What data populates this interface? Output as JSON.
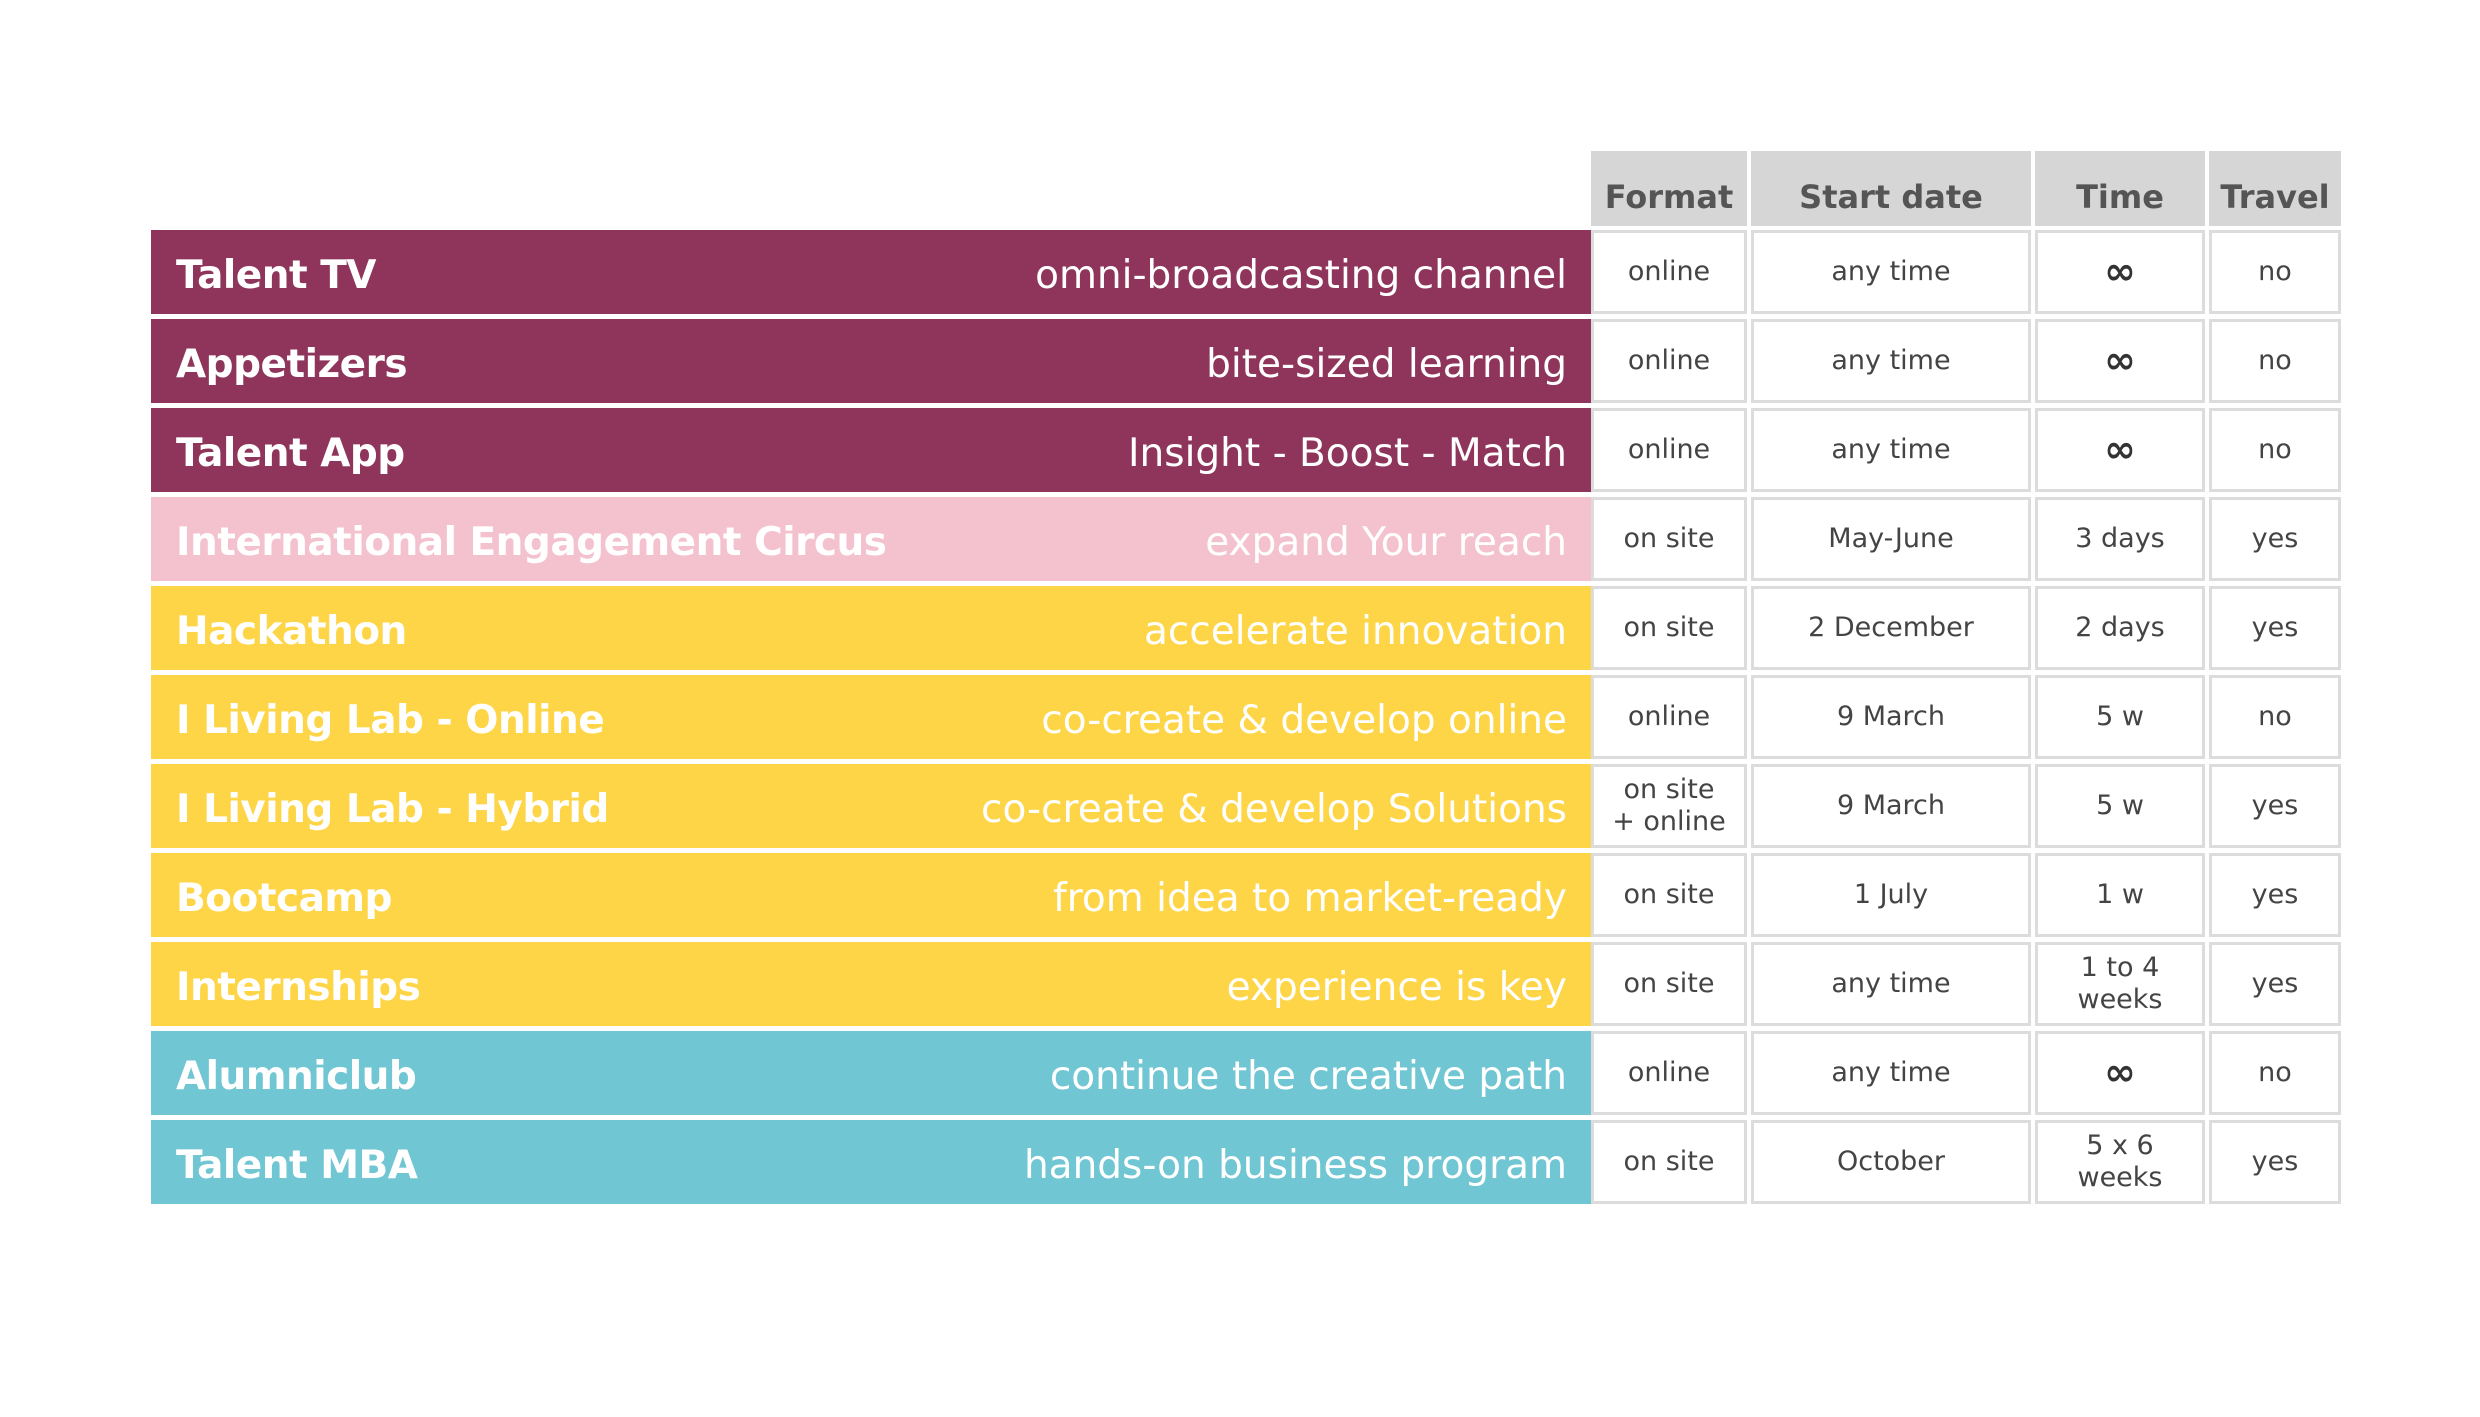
{
  "columns": {
    "format": "Format",
    "start_date": "Start date",
    "time": "Time",
    "travel": "Travel"
  },
  "colors": {
    "purple": "#8f355c",
    "pink": "#f4c2cf",
    "yellow": "#fdd546",
    "teal": "#70c6d3"
  },
  "rows": [
    {
      "name": "Talent TV",
      "tagline": "omni-broadcasting channel",
      "format": "online",
      "start_date": "any time",
      "time": "∞",
      "travel": "no",
      "color": "purple"
    },
    {
      "name": "Appetizers",
      "tagline": "bite-sized learning",
      "format": "online",
      "start_date": "any time",
      "time": "∞",
      "travel": "no",
      "color": "purple"
    },
    {
      "name": "Talent App",
      "tagline": "Insight - Boost - Match",
      "format": "online",
      "start_date": "any time",
      "time": "∞",
      "travel": "no",
      "color": "purple"
    },
    {
      "name": "International Engagement Circus",
      "tagline": "expand Your reach",
      "format": "on site",
      "start_date": "May-June",
      "time": "3 days",
      "travel": "yes",
      "color": "pink"
    },
    {
      "name": "Hackathon",
      "tagline": "accelerate innovation",
      "format": "on site",
      "start_date": "2 December",
      "time": "2 days",
      "travel": "yes",
      "color": "yellow"
    },
    {
      "name": "I Living Lab - Online",
      "tagline": "co-create & develop online",
      "format": "online",
      "start_date": "9 March",
      "time": "5 w",
      "travel": "no",
      "color": "yellow"
    },
    {
      "name": "I Living Lab - Hybrid",
      "tagline": "co-create & develop Solutions",
      "format": "on site\n+ online",
      "start_date": "9 March",
      "time": "5 w",
      "travel": "yes",
      "color": "yellow"
    },
    {
      "name": "Bootcamp",
      "tagline": "from idea to market-ready",
      "format": "on site",
      "start_date": "1 July",
      "time": "1 w",
      "travel": "yes",
      "color": "yellow"
    },
    {
      "name": "Internships",
      "tagline": "experience is key",
      "format": "on site",
      "start_date": "any time",
      "time": "1 to 4\nweeks",
      "travel": "yes",
      "color": "yellow"
    },
    {
      "name": "Alumniclub",
      "tagline": "continue the creative path",
      "format": "online",
      "start_date": "any time",
      "time": "∞",
      "travel": "no",
      "color": "teal"
    },
    {
      "name": "Talent MBA",
      "tagline": "hands-on business program",
      "format": "on site",
      "start_date": "October",
      "time": "5 x 6\nweeks",
      "travel": "yes",
      "color": "teal"
    }
  ]
}
